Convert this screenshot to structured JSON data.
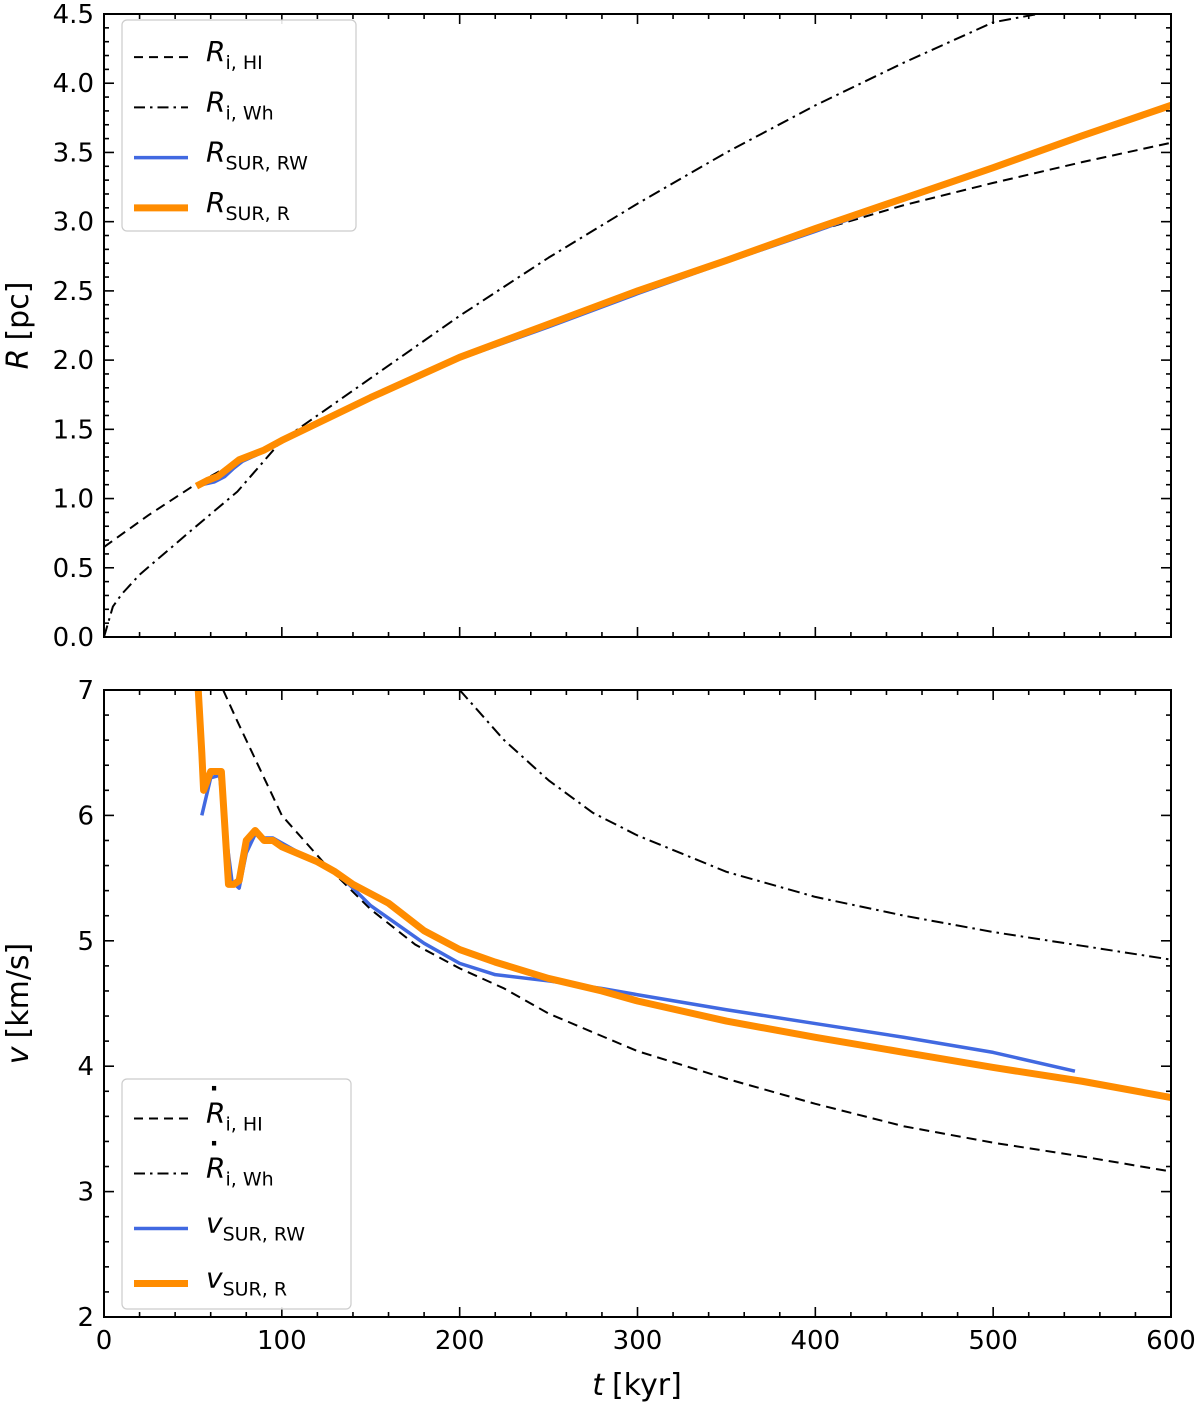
{
  "figure": {
    "xlabel": "t [kyr]",
    "xlabel_var": "t",
    "xlabel_unit": "[kyr]"
  },
  "chart_data": [
    {
      "type": "line",
      "panel": "top",
      "xlabel": "t [kyr]",
      "ylabel": "R [pc]",
      "ylabel_var": "R",
      "ylabel_unit": "[pc]",
      "xlim": [
        0,
        600
      ],
      "ylim": [
        0,
        4.5
      ],
      "xticks": [
        0,
        100,
        200,
        300,
        400,
        500,
        600
      ],
      "yticks": [
        0.0,
        0.5,
        1.0,
        1.5,
        2.0,
        2.5,
        3.0,
        3.5,
        4.0,
        4.5
      ],
      "xticklabels": [
        "0",
        "100",
        "200",
        "300",
        "400",
        "500",
        "600"
      ],
      "yticklabels": [
        "0.0",
        "0.5",
        "1.0",
        "1.5",
        "2.0",
        "2.5",
        "3.0",
        "3.5",
        "4.0",
        "4.5"
      ],
      "legend_position": "top-left",
      "series": [
        {
          "name": "R_i,HI",
          "label_main": "R",
          "label_sub": "i, HI",
          "label_dot": false,
          "style": "dashed",
          "color": "#000000",
          "x": [
            0,
            25,
            50,
            75,
            100,
            150,
            200,
            250,
            300,
            350,
            400,
            450,
            500,
            550,
            600
          ],
          "y": [
            0.65,
            0.88,
            1.09,
            1.27,
            1.42,
            1.73,
            2.02,
            2.26,
            2.51,
            2.73,
            2.93,
            3.12,
            3.28,
            3.43,
            3.57
          ]
        },
        {
          "name": "R_i,Wh",
          "label_main": "R",
          "label_sub": "i, Wh",
          "label_dot": false,
          "style": "dashdot",
          "color": "#000000",
          "x": [
            0,
            5,
            10,
            20,
            30,
            50,
            75,
            100,
            150,
            200,
            250,
            300,
            350,
            400,
            450,
            500,
            525
          ],
          "y": [
            0.0,
            0.22,
            0.31,
            0.45,
            0.56,
            0.78,
            1.05,
            1.42,
            1.87,
            2.32,
            2.74,
            3.13,
            3.5,
            3.84,
            4.15,
            4.44,
            4.5
          ]
        },
        {
          "name": "R_SUR,RW",
          "label_main": "R",
          "label_sub": "SUR, RW",
          "label_dot": false,
          "style": "solid",
          "color": "#4169e1",
          "x": [
            55,
            62,
            68,
            73,
            78,
            90,
            100,
            150,
            200,
            250,
            300,
            350,
            400,
            450,
            500,
            546
          ],
          "y": [
            1.1,
            1.12,
            1.16,
            1.22,
            1.27,
            1.34,
            1.41,
            1.72,
            2.01,
            2.24,
            2.48,
            2.71,
            2.93,
            3.16,
            3.39,
            3.61
          ]
        },
        {
          "name": "R_SUR,R",
          "label_main": "R",
          "label_sub": "SUR, R",
          "label_dot": false,
          "style": "solid",
          "color": "#ff8c00",
          "x": [
            52,
            58,
            64,
            70,
            76,
            90,
            100,
            150,
            200,
            250,
            300,
            350,
            400,
            450,
            500,
            550,
            600
          ],
          "y": [
            1.09,
            1.13,
            1.16,
            1.22,
            1.28,
            1.35,
            1.42,
            1.73,
            2.02,
            2.26,
            2.5,
            2.72,
            2.95,
            3.17,
            3.39,
            3.62,
            3.84
          ]
        }
      ]
    },
    {
      "type": "line",
      "panel": "bottom",
      "xlabel": "t [kyr]",
      "ylabel": "v [km/s]",
      "ylabel_var": "v",
      "ylabel_unit": "[km/s]",
      "xlim": [
        0,
        600
      ],
      "ylim": [
        2,
        7
      ],
      "xticks": [
        0,
        100,
        200,
        300,
        400,
        500,
        600
      ],
      "yticks": [
        2,
        3,
        4,
        5,
        6,
        7
      ],
      "xticklabels": [
        "0",
        "100",
        "200",
        "300",
        "400",
        "500",
        "600"
      ],
      "yticklabels": [
        "2",
        "3",
        "4",
        "5",
        "6",
        "7"
      ],
      "legend_position": "bottom-left",
      "series": [
        {
          "name": "dR_i,HI/dt",
          "label_main": "R",
          "label_sub": "i, HI",
          "label_dot": true,
          "style": "dashed",
          "color": "#000000",
          "x": [
            67,
            75,
            85,
            100,
            125,
            150,
            175,
            200,
            225,
            250,
            300,
            350,
            400,
            450,
            500,
            550,
            600
          ],
          "y": [
            7.0,
            6.75,
            6.45,
            6.0,
            5.6,
            5.25,
            4.97,
            4.78,
            4.62,
            4.42,
            4.12,
            3.9,
            3.7,
            3.52,
            3.39,
            3.28,
            3.16
          ]
        },
        {
          "name": "dR_i,Wh/dt",
          "label_main": "R",
          "label_sub": "i, Wh",
          "label_dot": true,
          "style": "dashdot",
          "color": "#000000",
          "x": [
            200,
            225,
            250,
            275,
            300,
            350,
            400,
            450,
            500,
            550,
            600
          ],
          "y": [
            7.0,
            6.6,
            6.28,
            6.02,
            5.84,
            5.55,
            5.35,
            5.2,
            5.07,
            4.96,
            4.85
          ]
        },
        {
          "name": "v_SUR,RW",
          "label_main": "v",
          "label_sub": "SUR, RW",
          "label_dot": false,
          "style": "solid",
          "color": "#4169e1",
          "x": [
            55,
            60,
            65,
            69,
            72,
            76,
            80,
            85,
            90,
            95,
            100,
            110,
            120,
            130,
            140,
            150,
            160,
            180,
            200,
            220,
            250,
            280,
            300,
            350,
            400,
            450,
            500,
            546
          ],
          "y": [
            6.0,
            6.3,
            6.32,
            5.8,
            5.47,
            5.42,
            5.7,
            5.85,
            5.82,
            5.82,
            5.78,
            5.7,
            5.64,
            5.55,
            5.42,
            5.28,
            5.18,
            4.98,
            4.82,
            4.73,
            4.68,
            4.62,
            4.57,
            4.45,
            4.34,
            4.23,
            4.11,
            3.96
          ]
        },
        {
          "name": "v_SUR,R",
          "label_main": "v",
          "label_sub": "SUR, R",
          "label_dot": false,
          "style": "solid",
          "color": "#ff8c00",
          "x": [
            53,
            55,
            56,
            60,
            66,
            70,
            73,
            76,
            80,
            85,
            90,
            95,
            100,
            110,
            120,
            130,
            140,
            160,
            180,
            200,
            220,
            250,
            280,
            300,
            350,
            400,
            450,
            500,
            550,
            600
          ],
          "y": [
            7.0,
            6.5,
            6.2,
            6.35,
            6.35,
            5.45,
            5.45,
            5.48,
            5.8,
            5.88,
            5.8,
            5.8,
            5.75,
            5.69,
            5.63,
            5.55,
            5.45,
            5.3,
            5.08,
            4.93,
            4.83,
            4.7,
            4.6,
            4.52,
            4.36,
            4.23,
            4.11,
            3.99,
            3.88,
            3.75
          ]
        }
      ]
    }
  ]
}
